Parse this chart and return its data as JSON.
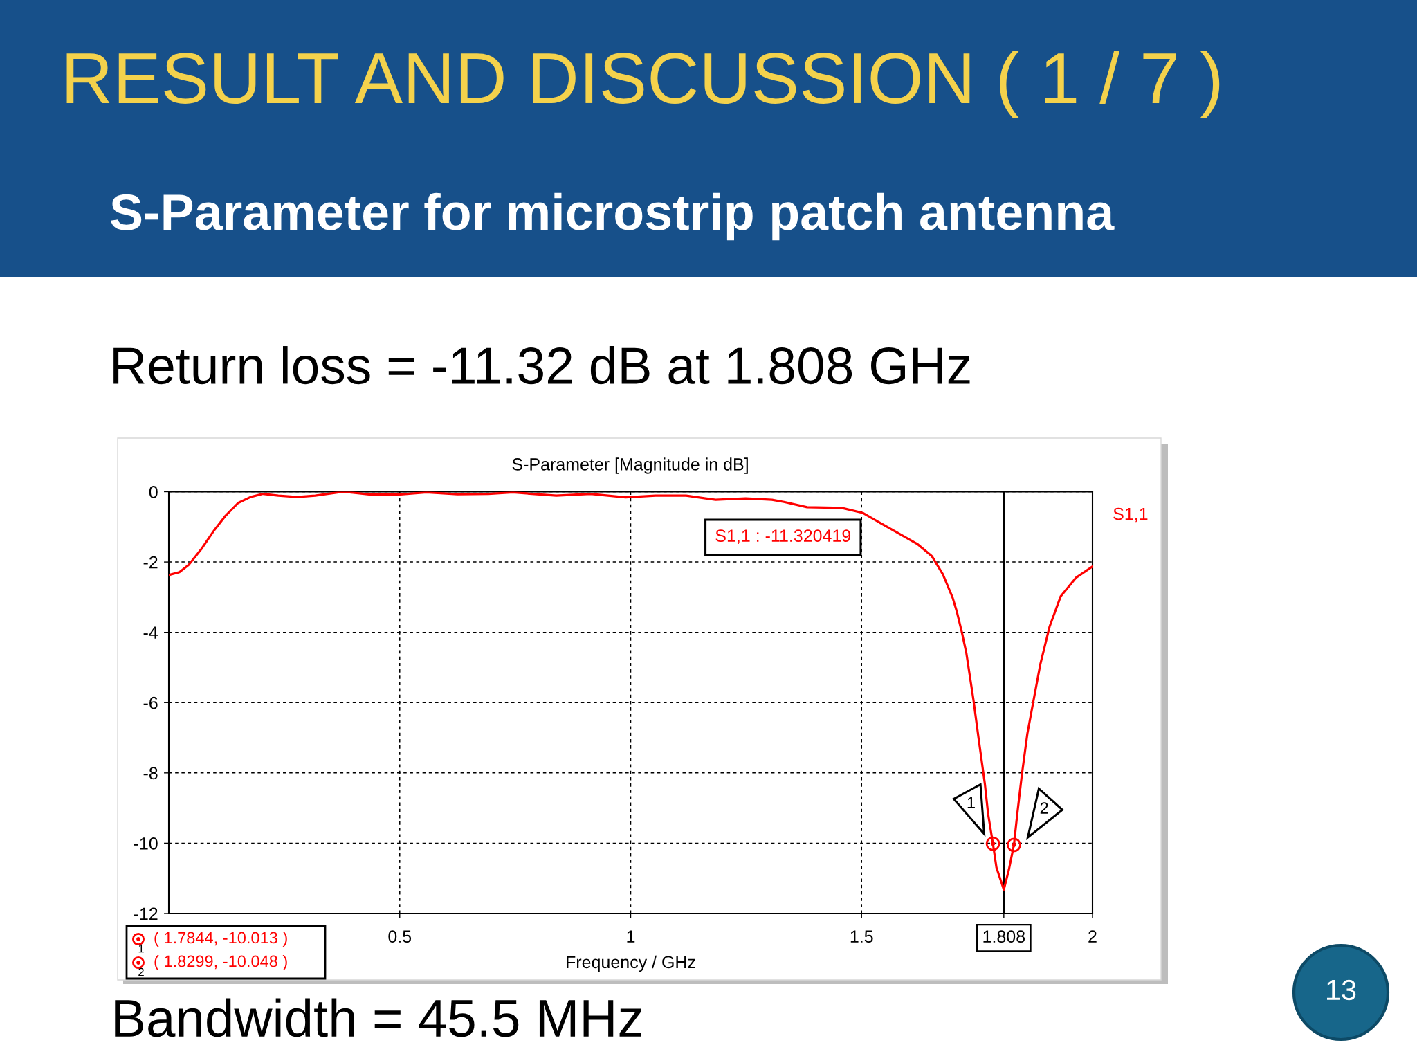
{
  "chart_data": {
    "type": "line",
    "title": "RESULT AND DISCUSSION ( 1 / 7 )",
    "subtitle": "S-Parameter for microstrip patch antenna",
    "xlabel": "Frequency / GHz",
    "xlim": [
      0,
      2
    ],
    "xticks": [
      0.5,
      1,
      1.5,
      1.808,
      2
    ],
    "ylim": [
      -12,
      0
    ],
    "yticks": [
      0,
      -2,
      -4,
      -6,
      -8,
      -10,
      -12
    ],
    "grid": true,
    "legend": "top right",
    "series": [
      {
        "name": "S1,1",
        "color": "#ff0000",
        "x": [
          0.0,
          0.023,
          0.043,
          0.07,
          0.097,
          0.123,
          0.15,
          0.177,
          0.204,
          0.237,
          0.278,
          0.317,
          0.378,
          0.437,
          0.497,
          0.558,
          0.625,
          0.692,
          0.745,
          0.839,
          0.913,
          0.989,
          1.054,
          1.12,
          1.184,
          1.249,
          1.306,
          1.332,
          1.382,
          1.457,
          1.502,
          1.622,
          1.652,
          1.676,
          1.697,
          1.706,
          1.717,
          1.727,
          1.742,
          1.754,
          1.767,
          1.774,
          1.7844,
          1.792,
          1.808,
          1.819,
          1.8299,
          1.837,
          1.847,
          1.859,
          1.872,
          1.887,
          1.907,
          1.931,
          1.964,
          2.0
        ],
        "values": [
          -2.37,
          -2.29,
          -2.08,
          -1.64,
          -1.12,
          -0.68,
          -0.32,
          -0.15,
          -0.06,
          -0.11,
          -0.15,
          -0.11,
          0.0,
          -0.08,
          -0.08,
          -0.02,
          -0.07,
          -0.06,
          -0.02,
          -0.11,
          -0.06,
          -0.16,
          -0.11,
          -0.11,
          -0.23,
          -0.19,
          -0.23,
          -0.29,
          -0.44,
          -0.46,
          -0.6,
          -1.5,
          -1.83,
          -2.35,
          -3.01,
          -3.4,
          -3.99,
          -4.6,
          -5.9,
          -7.08,
          -8.32,
          -9.17,
          -10.013,
          -10.69,
          -11.320419,
          -10.75,
          -10.048,
          -9.18,
          -8.06,
          -6.88,
          -5.96,
          -4.91,
          -3.84,
          -2.98,
          -2.45,
          -2.13
        ]
      },
      {
        "type": "scatter",
        "color": "#ff0000",
        "marker": "circle",
        "x": [
          1.7844,
          1.8299
        ],
        "values": [
          -10.013,
          -10.048
        ]
      }
    ],
    "ref_lines": [
      {
        "axis": "x",
        "value": 1.808,
        "color": "#000000",
        "line_style": "solid"
      }
    ],
    "annotations": [
      "S-Parameter [Magnitude in dB]",
      "Return loss = -11.32 dB at 1.808 GHz",
      "Bandwidth = 45.5 MHz",
      "13",
      "S1,1 : -11.320419",
      {
        "text": "1",
        "x": 1.7844,
        "y": -10.013
      },
      {
        "text": "2",
        "x": 1.8299,
        "y": -10.048
      },
      "( 1.7844, -10.013 )",
      "( 1.8299, -10.048 )"
    ]
  }
}
